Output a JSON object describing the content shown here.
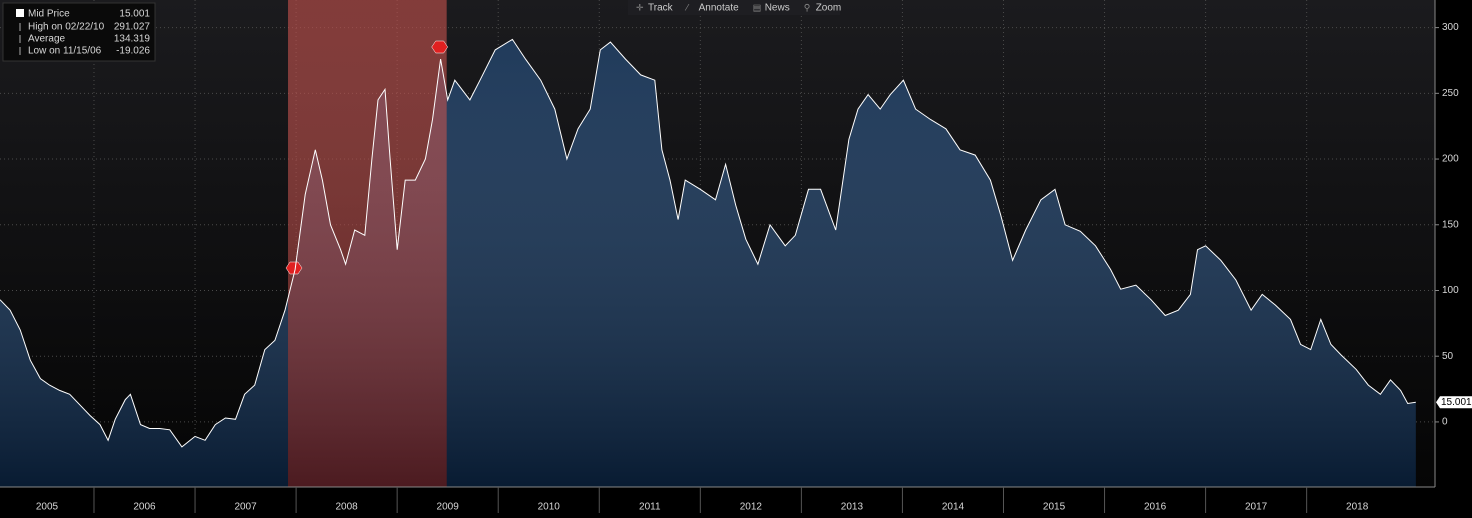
{
  "toolbar": [
    "Track",
    "Annotate",
    "News",
    "Zoom"
  ],
  "chart_data": {
    "type": "area",
    "x": [
      2005.07,
      2005.17,
      2005.27,
      2005.37,
      2005.47,
      2005.56,
      2005.66,
      2005.76,
      2005.86,
      2005.96,
      2006.06,
      2006.14,
      2006.21,
      2006.31,
      2006.36,
      2006.46,
      2006.55,
      2006.65,
      2006.75,
      2006.87,
      2007.0,
      2007.1,
      2007.2,
      2007.3,
      2007.4,
      2007.49,
      2007.59,
      2007.69,
      2007.79,
      2007.89,
      2007.99,
      2008.09,
      2008.19,
      2008.26,
      2008.34,
      2008.44,
      2008.49,
      2008.58,
      2008.68,
      2008.75,
      2008.81,
      2008.88,
      2008.93,
      2009.0,
      2009.08,
      2009.18,
      2009.28,
      2009.35,
      2009.43,
      2009.5,
      2009.57,
      2009.72,
      2009.82,
      2009.97,
      2010.14,
      2010.27,
      2010.42,
      2010.56,
      2010.68,
      2010.79,
      2010.91,
      2011.01,
      2011.11,
      2011.26,
      2011.41,
      2011.55,
      2011.62,
      2011.7,
      2011.78,
      2011.85,
      2012.0,
      2012.15,
      2012.25,
      2012.35,
      2012.45,
      2012.57,
      2012.69,
      2012.84,
      2012.94,
      2013.07,
      2013.19,
      2013.34,
      2013.47,
      2013.56,
      2013.66,
      2013.78,
      2013.88,
      2014.01,
      2014.13,
      2014.28,
      2014.43,
      2014.57,
      2014.72,
      2014.87,
      2014.97,
      2015.09,
      2015.22,
      2015.37,
      2015.51,
      2015.61,
      2015.76,
      2015.91,
      2016.06,
      2016.16,
      2016.31,
      2016.46,
      2016.6,
      2016.73,
      2016.85,
      2016.92,
      2017.0,
      2017.15,
      2017.3,
      2017.45,
      2017.56,
      2017.69,
      2017.84,
      2017.94,
      2018.04,
      2018.14,
      2018.24,
      2018.34,
      2018.49,
      2018.61,
      2018.73,
      2018.83,
      2018.93,
      2019.0,
      2019.08
    ],
    "series": [
      {
        "name": "Mid Price",
        "color": "#ffffff",
        "values": [
          93,
          85,
          70,
          47,
          33,
          28,
          24,
          21,
          13,
          5,
          -2,
          -14,
          2,
          17,
          21,
          -2,
          -5,
          -5,
          -6,
          -19.026,
          -11,
          -14,
          -2,
          3,
          2,
          21,
          28,
          55,
          62,
          85,
          116,
          173,
          207,
          184,
          150,
          131,
          120,
          146,
          142,
          200,
          245,
          253,
          200,
          131,
          184,
          184,
          200,
          230,
          276,
          245,
          260,
          245,
          260,
          283,
          291.027,
          276,
          260,
          238,
          200,
          223,
          238,
          283,
          289,
          276,
          264,
          260,
          207,
          184,
          154,
          184,
          177,
          169,
          196,
          165,
          139,
          120,
          150,
          134,
          142,
          177,
          177,
          146,
          215,
          238,
          249,
          238,
          249,
          260,
          238,
          230,
          223,
          207,
          203,
          184,
          158,
          123,
          146,
          169,
          177,
          150,
          145,
          134,
          116,
          101,
          104,
          93,
          81,
          85,
          97,
          131,
          134,
          123,
          108,
          85,
          97,
          89,
          78,
          59,
          55,
          78,
          59,
          51,
          40,
          28,
          21,
          32,
          24,
          14,
          15.001
        ]
      }
    ],
    "xlim": [
      2005.07,
      2019.27
    ],
    "ylim": [
      -49.5,
      321
    ],
    "yticks": [
      0,
      50,
      100,
      150,
      200,
      250,
      300
    ],
    "xticks": [
      {
        "value": 2005,
        "label": "2005"
      },
      {
        "value": 2006,
        "label": "2006"
      },
      {
        "value": 2007,
        "label": "2007"
      },
      {
        "value": 2008,
        "label": "2008"
      },
      {
        "value": 2009,
        "label": "2009"
      },
      {
        "value": 2010,
        "label": "2010"
      },
      {
        "value": 2011,
        "label": "2011"
      },
      {
        "value": 2012,
        "label": "2012"
      },
      {
        "value": 2013,
        "label": "2013"
      },
      {
        "value": 2014,
        "label": "2014"
      },
      {
        "value": 2015,
        "label": "2015"
      },
      {
        "value": 2016,
        "label": "2016"
      },
      {
        "value": 2017,
        "label": "2017"
      },
      {
        "value": 2018,
        "label": "2018"
      }
    ],
    "grid": true,
    "fill_color": "#0d2a4d",
    "shaded_regions": [
      {
        "start": 2007.92,
        "end": 2009.49,
        "color": "#c0302a"
      }
    ],
    "legend_stats": [
      {
        "label": "High on 02/22/10",
        "value": 291.027
      },
      {
        "label": "Average",
        "value": 134.319
      },
      {
        "label": "Low on 11/15/06",
        "value": -19.026
      }
    ]
  }
}
